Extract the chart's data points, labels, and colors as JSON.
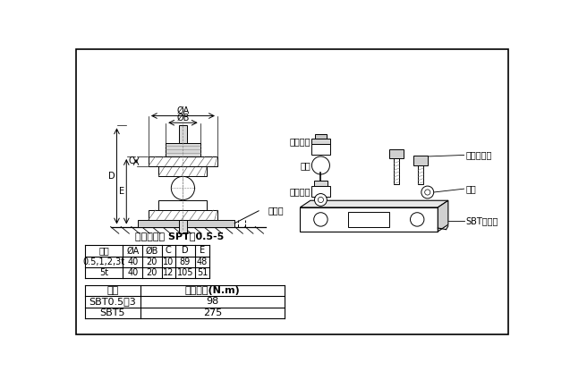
{
  "bg_color": "#ffffff",
  "border_color": "#000000",
  "connector_label": "连接件组件 SPT－0.5-5",
  "table1_headers": [
    "容量",
    "ØA",
    "ØB",
    "C",
    "D",
    "E"
  ],
  "table1_rows": [
    [
      "0.5,1,2,3t",
      "40",
      "20",
      "10",
      "89",
      "48"
    ],
    [
      "5t",
      "40",
      "20",
      "12",
      "105",
      "51"
    ]
  ],
  "table2_headers": [
    "型号",
    "拧紧力矩(N.m)"
  ],
  "table2_rows": [
    [
      "SBT0.5～3",
      "98"
    ],
    [
      "SBT5",
      "275"
    ]
  ],
  "part_labels": [
    "上承压头",
    "锂球",
    "下承压头",
    "高强度螺栓",
    "婬圈",
    "SBT传感器"
  ],
  "sensor_label": "传感器",
  "dim_labels": [
    "ØA",
    "ØB",
    "C",
    "E",
    "D"
  ],
  "lc": "#000000",
  "hatch_color": "#555555"
}
